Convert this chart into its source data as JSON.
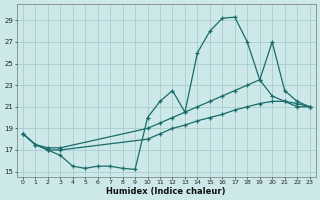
{
  "xlabel": "Humidex (Indice chaleur)",
  "bg_color": "#cce8e8",
  "grid_color": "#aacccc",
  "line_color": "#1a6b6b",
  "xlim": [
    -0.5,
    23.5
  ],
  "ylim": [
    14.5,
    30.5
  ],
  "xticks": [
    0,
    1,
    2,
    3,
    4,
    5,
    6,
    7,
    8,
    9,
    10,
    11,
    12,
    13,
    14,
    15,
    16,
    17,
    18,
    19,
    20,
    21,
    22,
    23
  ],
  "yticks": [
    15,
    17,
    19,
    21,
    23,
    25,
    27,
    29
  ],
  "series1_x": [
    0,
    1,
    2,
    3,
    4,
    5,
    6,
    7,
    8,
    9,
    10,
    11,
    12,
    13,
    14,
    15,
    16,
    17,
    18,
    19,
    20,
    21,
    22,
    23
  ],
  "series1_y": [
    18.5,
    17.5,
    17.0,
    16.5,
    15.5,
    15.3,
    15.5,
    15.5,
    15.3,
    15.2,
    20.0,
    21.5,
    22.5,
    20.5,
    26.0,
    28.0,
    29.2,
    29.3,
    27.0,
    23.5,
    22.0,
    21.5,
    21.0,
    21.0
  ],
  "series2_x": [
    0,
    1,
    2,
    3,
    10,
    11,
    12,
    13,
    14,
    15,
    16,
    17,
    18,
    19,
    20,
    21,
    22,
    23
  ],
  "series2_y": [
    18.5,
    17.5,
    17.2,
    17.2,
    19.0,
    19.5,
    20.0,
    20.5,
    21.0,
    21.5,
    22.0,
    22.5,
    23.0,
    23.5,
    27.0,
    22.5,
    21.5,
    21.0
  ],
  "series3_x": [
    0,
    1,
    2,
    3,
    10,
    11,
    12,
    13,
    14,
    15,
    16,
    17,
    18,
    19,
    20,
    21,
    22,
    23
  ],
  "series3_y": [
    18.5,
    17.5,
    17.0,
    17.0,
    18.0,
    18.5,
    19.0,
    19.3,
    19.7,
    20.0,
    20.3,
    20.7,
    21.0,
    21.3,
    21.5,
    21.5,
    21.3,
    21.0
  ]
}
